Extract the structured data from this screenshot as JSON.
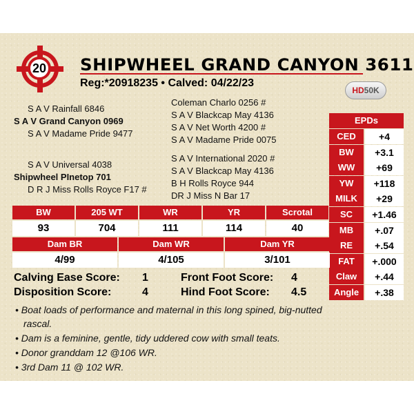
{
  "lot_number": "20",
  "title": "SHIPWHEEL GRAND CANYON 3611",
  "reg_line": "Reg:*20918235 • Calved: 04/22/23",
  "badge": {
    "prefix": "HD",
    "suffix": "50K"
  },
  "pedigree": {
    "sire_sire": "S A V Rainfall 6846",
    "sire": "S A V Grand Canyon 0969",
    "sire_dam": "S A V Madame Pride 9477",
    "dam_sire": "S A V Universal 4038",
    "dam": "Shipwheel PInetop 701",
    "dam_dam": "D R J Miss Rolls Royce F17 #",
    "sss": "Coleman Charlo 0256 #",
    "ssd": "S A V Blackcap May 4136",
    "sds": "S A V Net Worth 4200 #",
    "sdd": "S A V Madame Pride 0075",
    "dss": "S A V International 2020 #",
    "dsd": "S A V Blackcap May 4136",
    "dds": "B H Rolls Royce 944",
    "ddd": "DR J Miss N Bar 17"
  },
  "epds": {
    "header": "EPDs",
    "rows": [
      {
        "label": "CED",
        "value": "+4"
      },
      {
        "label": "BW",
        "value": "+3.1"
      },
      {
        "label": "WW",
        "value": "+69"
      },
      {
        "label": "YW",
        "value": "+118"
      },
      {
        "label": "MILK",
        "value": "+29"
      },
      {
        "label": "SC",
        "value": "+1.46"
      },
      {
        "label": "MB",
        "value": "+.07"
      },
      {
        "label": "RE",
        "value": "+.54"
      },
      {
        "label": "FAT",
        "value": "+.000"
      },
      {
        "label": "Claw",
        "value": "+.44"
      },
      {
        "label": "Angle",
        "value": "+.38"
      }
    ]
  },
  "performance": {
    "headers": [
      "BW",
      "205 WT",
      "WR",
      "YR",
      "Scrotal"
    ],
    "values": [
      "93",
      "704",
      "111",
      "114",
      "40"
    ]
  },
  "dam_stats": {
    "headers": [
      "Dam BR",
      "Dam WR",
      "Dam YR"
    ],
    "values": [
      "4/99",
      "4/105",
      "3/101"
    ]
  },
  "scores": {
    "calving_label": "Calving Ease Score:",
    "calving_value": "1",
    "disposition_label": "Disposition Score:",
    "disposition_value": "4",
    "front_label": "Front Foot Score:",
    "front_value": "4",
    "hind_label": "Hind Foot Score:",
    "hind_value": "4.5"
  },
  "notes": [
    "• Boat loads of performance and maternal in this long spined, big-nutted",
    "rascal.",
    "• Dam is a feminine, gentle, tidy uddered cow with small teats.",
    "• Donor granddam 12 @106 WR.",
    "• 3rd Dam 11 @ 102 WR."
  ],
  "colors": {
    "accent": "#c8161d",
    "card": "#ece3c8"
  }
}
